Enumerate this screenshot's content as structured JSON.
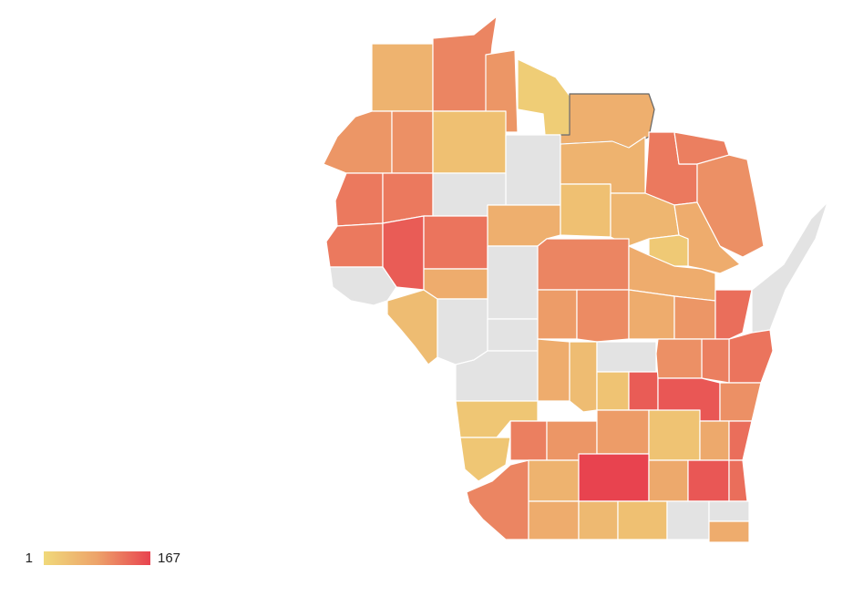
{
  "legend": {
    "min": 1,
    "max": 167,
    "colors": [
      "#f0d97a",
      "#eda36a",
      "#e8434f"
    ],
    "null_color": "#e3e3e3"
  },
  "regions": [
    60,
    110,
    95,
    20,
    65,
    95,
    100,
    40,
    null,
    60,
    120,
    115,
    100,
    120,
    120,
    null,
    65,
    40,
    55,
    70,
    25,
    120,
    145,
    125,
    null,
    110,
    70,
    null,
    45,
    70,
    null,
    null,
    90,
    105,
    70,
    95,
    130,
    null,
    125,
    115,
    null,
    70,
    45,
    null,
    35,
    145,
    100,
    150,
    100,
    30,
    30,
    115,
    95,
    90,
    35,
    75,
    130,
    110,
    60,
    167,
    75,
    150,
    130,
    70,
    50,
    40,
    null,
    null,
    70
  ]
}
